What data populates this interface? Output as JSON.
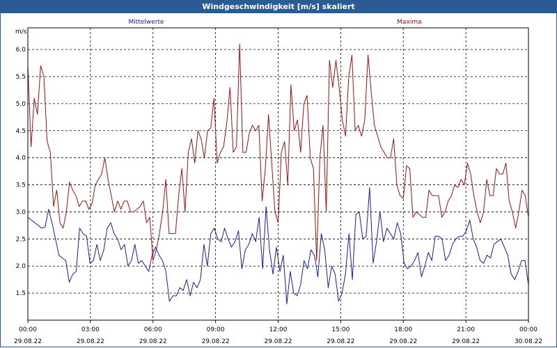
{
  "window": {
    "title": "Windgeschwindigkeit [m/s] skaliert"
  },
  "chart_data": {
    "type": "line",
    "ylabel": "m/s",
    "ylim": [
      1.0,
      6.4
    ],
    "yticks": [
      "1.5",
      "2.0",
      "2.5",
      "3.0",
      "3.5",
      "4.0",
      "4.5",
      "5.0",
      "5.5",
      "6.0"
    ],
    "xlim_hours": [
      0,
      24
    ],
    "xticks": [
      {
        "time": "00:00",
        "date": "29.08.22"
      },
      {
        "time": "03:00",
        "date": "29.08.22"
      },
      {
        "time": "06:00",
        "date": "29.08.22"
      },
      {
        "time": "09:00",
        "date": "29.08.22"
      },
      {
        "time": "12:00",
        "date": "29.08.22"
      },
      {
        "time": "15:00",
        "date": "29.08.22"
      },
      {
        "time": "18:00",
        "date": "29.08.22"
      },
      {
        "time": "21:00",
        "date": "29.08.22"
      },
      {
        "time": "00:00",
        "date": "30.08.22"
      }
    ],
    "grid": true,
    "series": [
      {
        "name": "Mittelwerte",
        "color": "#1a1aa6",
        "values": [
          2.9,
          2.85,
          2.8,
          2.75,
          2.7,
          2.72,
          3.05,
          2.8,
          2.5,
          2.2,
          2.15,
          2.1,
          1.7,
          1.85,
          1.9,
          2.7,
          2.6,
          2.55,
          2.05,
          2.1,
          2.4,
          2.1,
          2.3,
          2.7,
          2.8,
          2.6,
          2.5,
          2.3,
          2.4,
          2.0,
          2.1,
          2.4,
          2.05,
          2.1,
          2.0,
          1.9,
          2.2,
          2.35,
          2.2,
          2.1,
          1.9,
          1.35,
          1.45,
          1.45,
          1.6,
          1.55,
          1.75,
          1.45,
          1.7,
          1.6,
          1.75,
          2.4,
          2.0,
          2.6,
          2.7,
          2.5,
          2.45,
          2.7,
          2.5,
          2.35,
          2.45,
          2.65,
          1.95,
          2.3,
          2.4,
          2.6,
          2.45,
          2.9,
          1.95,
          3.1,
          2.3,
          1.85,
          2.35,
          1.9,
          2.2,
          1.3,
          1.9,
          1.5,
          1.45,
          1.65,
          2.1,
          1.95,
          2.3,
          2.2,
          1.8,
          2.6,
          2.3,
          1.6,
          2.0,
          1.85,
          1.35,
          1.5,
          1.85,
          2.6,
          1.75,
          2.95,
          3.0,
          2.5,
          2.55,
          3.45,
          2.05,
          2.45,
          3.0,
          2.45,
          2.7,
          2.6,
          2.5,
          2.8,
          2.6,
          2.05,
          1.95,
          2.0,
          2.1,
          2.25,
          1.8,
          2.0,
          2.25,
          2.1,
          2.55,
          2.55,
          2.5,
          2.1,
          2.2,
          2.4,
          2.5,
          2.55,
          2.55,
          2.65,
          2.85,
          2.5,
          2.35,
          2.1,
          2.05,
          2.2,
          2.15,
          2.4,
          2.45,
          2.5,
          2.35,
          2.2,
          1.85,
          1.75,
          1.9,
          2.1,
          2.1,
          1.65
        ]
      },
      {
        "name": "Maxima",
        "color": "#a01010",
        "values": [
          5.7,
          4.2,
          5.1,
          4.8,
          5.7,
          5.5,
          4.3,
          4.1,
          3.1,
          3.4,
          2.8,
          2.7,
          3.0,
          3.55,
          3.4,
          3.3,
          3.1,
          3.2,
          3.2,
          3.05,
          3.15,
          3.5,
          3.6,
          3.7,
          4.0,
          3.6,
          3.3,
          3.0,
          3.2,
          3.05,
          3.2,
          3.2,
          3.0,
          3.0,
          3.05,
          3.1,
          3.2,
          2.8,
          2.9,
          2.1,
          2.3,
          2.6,
          3.0,
          3.6,
          2.6,
          2.6,
          2.6,
          3.3,
          3.8,
          3.0,
          4.1,
          4.35,
          3.9,
          4.5,
          4.35,
          4.0,
          4.5,
          4.55,
          5.1,
          3.9,
          4.1,
          4.2,
          4.65,
          5.3,
          4.1,
          4.2,
          6.1,
          4.1,
          4.1,
          4.45,
          4.6,
          4.5,
          4.6,
          3.2,
          3.8,
          4.8,
          3.9,
          3.0,
          2.8,
          4.1,
          4.3,
          3.5,
          5.35,
          4.5,
          4.7,
          4.1,
          5.0,
          5.15,
          4.0,
          3.8,
          2.1,
          4.0,
          4.6,
          3.0,
          5.8,
          5.3,
          5.8,
          5.3,
          4.7,
          4.4,
          5.5,
          5.9,
          4.5,
          4.6,
          4.4,
          4.7,
          5.9,
          5.2,
          4.6,
          4.4,
          4.2,
          4.1,
          4.0,
          4.0,
          4.35,
          3.5,
          3.3,
          3.25,
          3.85,
          3.8,
          2.9,
          3.0,
          2.95,
          2.9,
          2.9,
          3.4,
          3.3,
          3.3,
          3.3,
          2.9,
          3.0,
          3.2,
          3.3,
          3.5,
          3.45,
          3.6,
          3.5,
          3.9,
          3.7,
          3.3,
          3.0,
          2.8,
          3.0,
          3.6,
          3.3,
          3.3,
          3.8,
          3.7,
          3.7,
          3.9,
          3.2,
          3.0,
          2.7,
          3.0,
          3.4,
          3.3,
          2.9
        ]
      }
    ]
  }
}
